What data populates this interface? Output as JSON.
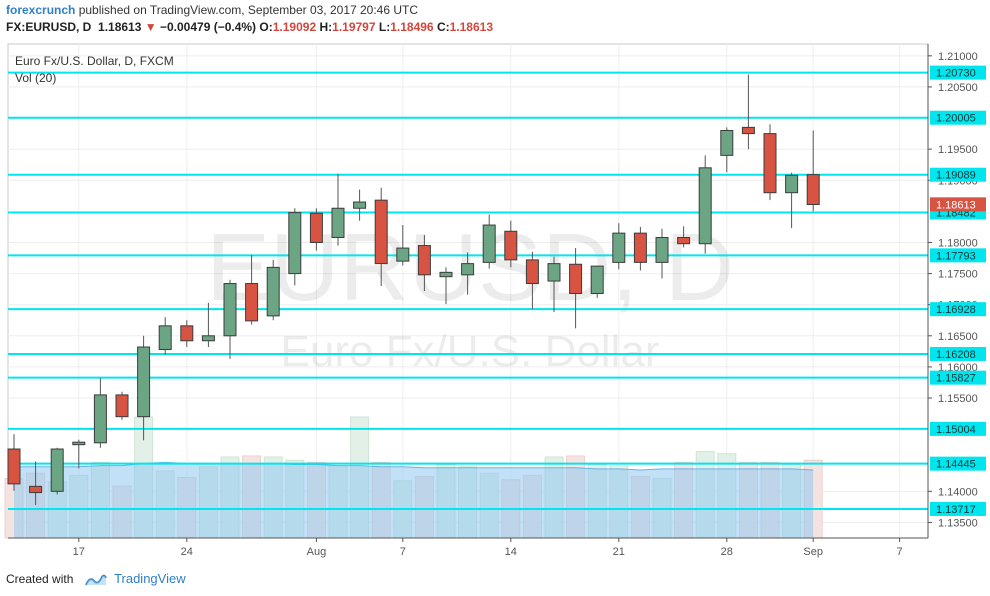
{
  "header": {
    "author": "forexcrunch",
    "published_text": "published on TradingView.com, September 03, 2017 20:46 UTC",
    "symbol": "FX:EURUSD, D",
    "last": "1.18613",
    "change": "−0.00479 (−0.4%)",
    "o_label": "O:",
    "o_value": "1.19092",
    "h_label": "H:",
    "h_value": "1.19797",
    "l_label": "L:",
    "l_value": "1.18496",
    "c_label": "C:",
    "c_value": "1.18613"
  },
  "colors": {
    "up": "#6ba583",
    "down": "#d75442",
    "hline": "#00e5ee",
    "volume_ma": "#8fc8f0",
    "last_price_badge": "#d75442"
  },
  "chart_data": {
    "type": "candlestick",
    "title": "",
    "legend": [
      "Euro Fx/U.S. Dollar, D, FXCM",
      "Vol (20)"
    ],
    "watermark": [
      "EURUSD, D",
      "Euro Fx/U.S. Dollar"
    ],
    "ylim": [
      1.1325,
      1.2119
    ],
    "y_ticks": [
      "1.21000",
      "1.20500",
      "1.19500",
      "1.19000",
      "1.18000",
      "1.17500",
      "1.17000",
      "1.16500",
      "1.16000",
      "1.15500",
      "1.14000",
      "1.13500"
    ],
    "x_tick_labels": [
      {
        "label": "17",
        "index": 3
      },
      {
        "label": "24",
        "index": 8
      },
      {
        "label": "Aug",
        "index": 14
      },
      {
        "label": "7",
        "index": 18
      },
      {
        "label": "14",
        "index": 23
      },
      {
        "label": "21",
        "index": 28
      },
      {
        "label": "28",
        "index": 33
      },
      {
        "label": "Sep",
        "index": 37
      },
      {
        "label": "7",
        "index": 41
      }
    ],
    "horizontal_levels": [
      "1.20730",
      "1.20005",
      "1.19089",
      "1.18482",
      "1.17793",
      "1.16928",
      "1.16208",
      "1.15827",
      "1.15004",
      "1.14445",
      "1.13717"
    ],
    "last_price": "1.18613",
    "candles": [
      {
        "o": 1.1468,
        "h": 1.1492,
        "l": 1.1401,
        "c": 1.1412
      },
      {
        "o": 1.1408,
        "h": 1.1448,
        "l": 1.1378,
        "c": 1.1398
      },
      {
        "o": 1.14,
        "h": 1.147,
        "l": 1.1395,
        "c": 1.1468
      },
      {
        "o": 1.1475,
        "h": 1.1483,
        "l": 1.1437,
        "c": 1.1479
      },
      {
        "o": 1.1478,
        "h": 1.1582,
        "l": 1.147,
        "c": 1.1555
      },
      {
        "o": 1.1555,
        "h": 1.156,
        "l": 1.1515,
        "c": 1.152
      },
      {
        "o": 1.152,
        "h": 1.165,
        "l": 1.1482,
        "c": 1.1632
      },
      {
        "o": 1.1628,
        "h": 1.168,
        "l": 1.162,
        "c": 1.1666
      },
      {
        "o": 1.1666,
        "h": 1.1675,
        "l": 1.1632,
        "c": 1.1642
      },
      {
        "o": 1.1642,
        "h": 1.1703,
        "l": 1.1632,
        "c": 1.165
      },
      {
        "o": 1.165,
        "h": 1.174,
        "l": 1.1613,
        "c": 1.1734
      },
      {
        "o": 1.1734,
        "h": 1.178,
        "l": 1.1668,
        "c": 1.1674
      },
      {
        "o": 1.1682,
        "h": 1.1772,
        "l": 1.1675,
        "c": 1.176
      },
      {
        "o": 1.175,
        "h": 1.1855,
        "l": 1.1731,
        "c": 1.1848
      },
      {
        "o": 1.1847,
        "h": 1.1855,
        "l": 1.1787,
        "c": 1.18
      },
      {
        "o": 1.1808,
        "h": 1.191,
        "l": 1.1795,
        "c": 1.1855
      },
      {
        "o": 1.1855,
        "h": 1.1885,
        "l": 1.1835,
        "c": 1.1865
      },
      {
        "o": 1.1868,
        "h": 1.1888,
        "l": 1.173,
        "c": 1.1766
      },
      {
        "o": 1.177,
        "h": 1.1828,
        "l": 1.1763,
        "c": 1.1791
      },
      {
        "o": 1.1795,
        "h": 1.1812,
        "l": 1.1722,
        "c": 1.1748
      },
      {
        "o": 1.1745,
        "h": 1.176,
        "l": 1.1701,
        "c": 1.1752
      },
      {
        "o": 1.1748,
        "h": 1.1784,
        "l": 1.1716,
        "c": 1.1766
      },
      {
        "o": 1.1768,
        "h": 1.1845,
        "l": 1.1758,
        "c": 1.1828
      },
      {
        "o": 1.1818,
        "h": 1.1835,
        "l": 1.176,
        "c": 1.1772
      },
      {
        "o": 1.1772,
        "h": 1.1785,
        "l": 1.1693,
        "c": 1.1734
      },
      {
        "o": 1.1738,
        "h": 1.1777,
        "l": 1.1688,
        "c": 1.1766
      },
      {
        "o": 1.1765,
        "h": 1.1791,
        "l": 1.1662,
        "c": 1.1718
      },
      {
        "o": 1.1718,
        "h": 1.1762,
        "l": 1.1711,
        "c": 1.1762
      },
      {
        "o": 1.1768,
        "h": 1.1831,
        "l": 1.1757,
        "c": 1.1815
      },
      {
        "o": 1.1815,
        "h": 1.1825,
        "l": 1.1755,
        "c": 1.1768
      },
      {
        "o": 1.1768,
        "h": 1.1822,
        "l": 1.1742,
        "c": 1.1808
      },
      {
        "o": 1.1808,
        "h": 1.1826,
        "l": 1.1792,
        "c": 1.1798
      },
      {
        "o": 1.1798,
        "h": 1.194,
        "l": 1.1782,
        "c": 1.192
      },
      {
        "o": 1.194,
        "h": 1.1985,
        "l": 1.1913,
        "c": 1.198
      },
      {
        "o": 1.1985,
        "h": 1.207,
        "l": 1.195,
        "c": 1.1975
      },
      {
        "o": 1.1975,
        "h": 1.199,
        "l": 1.1868,
        "c": 1.188
      },
      {
        "o": 1.188,
        "h": 1.1912,
        "l": 1.1823,
        "c": 1.1908
      },
      {
        "o": 1.1909,
        "h": 1.198,
        "l": 1.185,
        "c": 1.1861
      }
    ],
    "volume_ylim": [
      0,
      100
    ],
    "volume": [
      55,
      60,
      52,
      58,
      70,
      48,
      112,
      62,
      56,
      66,
      75,
      76,
      75,
      72,
      70,
      67,
      112,
      70,
      53,
      57,
      68,
      66,
      60,
      54,
      58,
      75,
      76,
      68,
      67,
      57,
      55,
      70,
      80,
      78,
      70,
      70,
      68,
      72
    ],
    "volume_ma": [
      66,
      66,
      66,
      66,
      67,
      67,
      69,
      70,
      69,
      69,
      69,
      69,
      69,
      68,
      68,
      67,
      67,
      66,
      66,
      65,
      65,
      65,
      65,
      65,
      65,
      65,
      65,
      64,
      64,
      63,
      64,
      64,
      64,
      64,
      64,
      64,
      64,
      63
    ]
  },
  "footer": {
    "created_with": "Created with",
    "brand": "TradingView"
  }
}
